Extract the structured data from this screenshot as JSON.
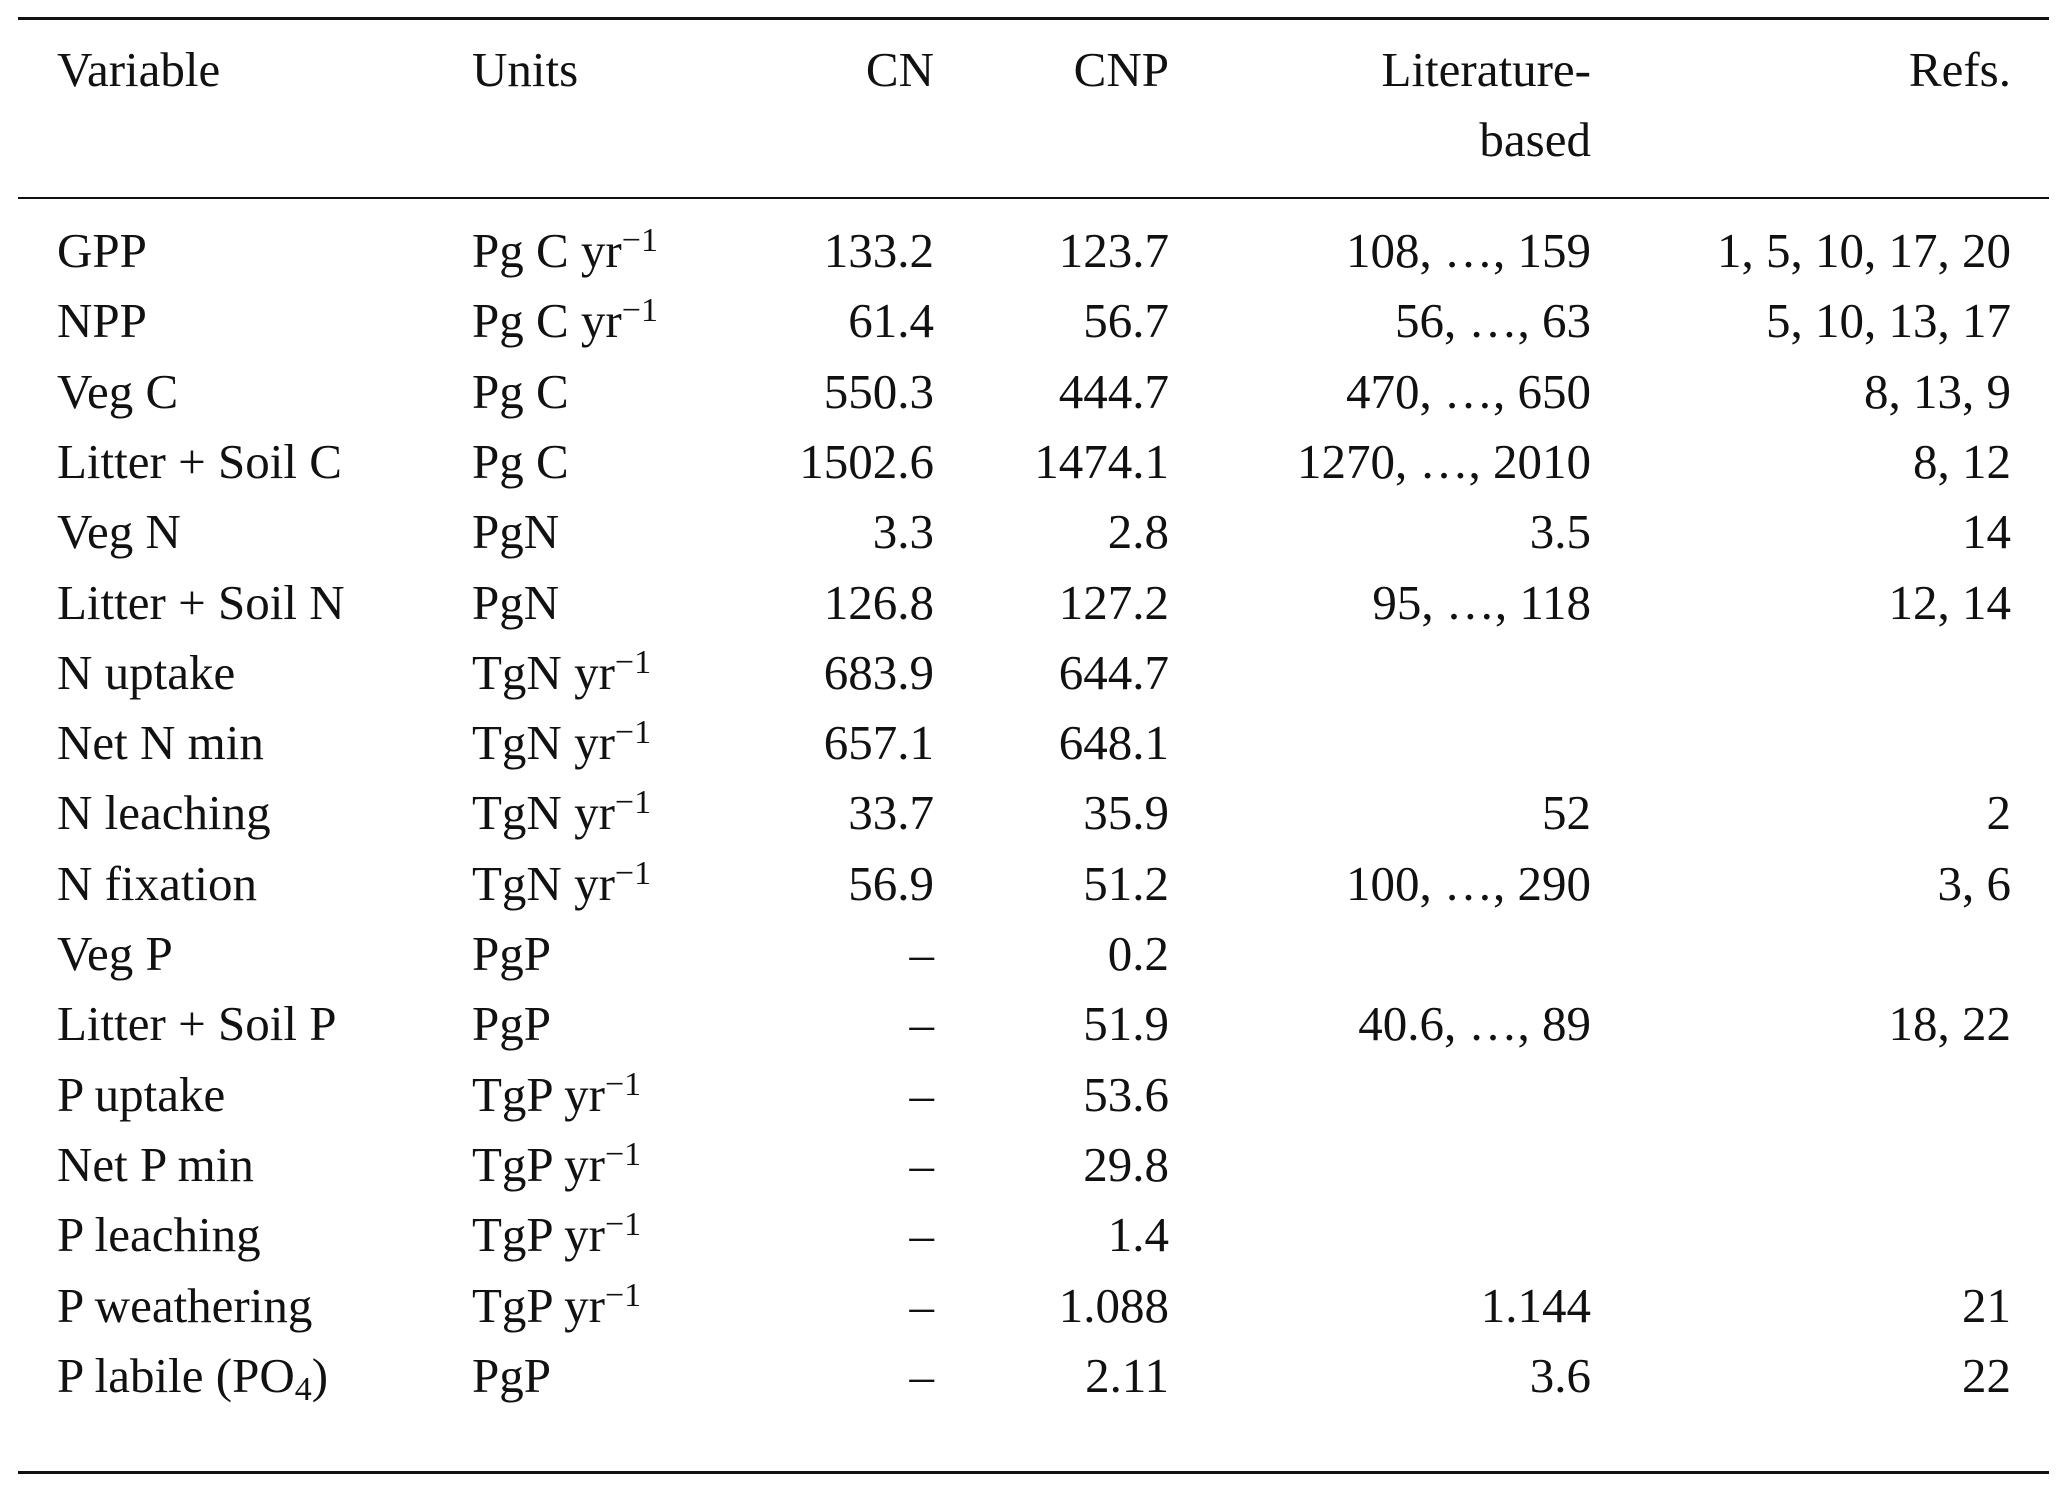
{
  "table": {
    "header": {
      "variable": "Variable",
      "units": "Units",
      "cn": "CN",
      "cnp": "CNP",
      "lit": [
        "Literature-",
        "based"
      ],
      "refs": "Refs."
    },
    "rows": [
      {
        "name": "GPP",
        "units": "Pg C yr",
        "units_sup": "−1",
        "cn": "133.2",
        "cnp": "123.7",
        "lit": "108, …, 159",
        "refs": "1, 5, 10, 17, 20"
      },
      {
        "name": "NPP",
        "units": "Pg C yr",
        "units_sup": "−1",
        "cn": "61.4",
        "cnp": "56.7",
        "lit": "56, …, 63",
        "refs": "5, 10, 13, 17"
      },
      {
        "name": "Veg C",
        "units": "Pg C",
        "cn": "550.3",
        "cnp": "444.7",
        "lit": "470, …, 650",
        "refs": "8, 13, 9"
      },
      {
        "name": "Litter + Soil C",
        "units": "Pg C",
        "cn": "1502.6",
        "cnp": "1474.1",
        "lit": "1270, …, 2010",
        "refs": "8, 12"
      },
      {
        "name": "Veg N",
        "units": "PgN",
        "cn": "3.3",
        "cnp": "2.8",
        "lit": "3.5",
        "refs": "14"
      },
      {
        "name": "Litter + Soil N",
        "units": "PgN",
        "cn": "126.8",
        "cnp": "127.2",
        "lit": "95, …, 118",
        "refs": "12, 14"
      },
      {
        "name": "N uptake",
        "units": "TgN yr",
        "units_sup": "−1",
        "cn": "683.9",
        "cnp": "644.7"
      },
      {
        "name": "Net N min",
        "units": "TgN yr",
        "units_sup": "−1",
        "cn": "657.1",
        "cnp": "648.1"
      },
      {
        "name": "N leaching",
        "units": "TgN yr",
        "units_sup": "−1",
        "cn": "33.7",
        "cnp": "35.9",
        "lit": "52",
        "refs": "2"
      },
      {
        "name": "N fixation",
        "units": "TgN yr",
        "units_sup": "−1",
        "cn": "56.9",
        "cnp": "51.2",
        "lit": "100, …, 290",
        "refs": "3, 6"
      },
      {
        "name": "Veg P",
        "units": "PgP",
        "cn": "–",
        "cnp": "0.2"
      },
      {
        "name": "Litter + Soil P",
        "units": "PgP",
        "cn": "–",
        "cnp": "51.9",
        "lit": "40.6, …, 89",
        "refs": "18, 22"
      },
      {
        "name": "P uptake",
        "units": "TgP yr",
        "units_sup": "−1",
        "cn": "–",
        "cnp": "53.6"
      },
      {
        "name": "Net P min",
        "units": "TgP yr",
        "units_sup": "−1",
        "cn": "–",
        "cnp": "29.8"
      },
      {
        "name": "P leaching",
        "units": "TgP yr",
        "units_sup": "−1",
        "cn": "–",
        "cnp": "1.4"
      },
      {
        "name": "P weathering",
        "units": "TgP yr",
        "units_sup": "−1",
        "cn": "–",
        "cnp": "1.088",
        "lit": "1.144",
        "refs": "21"
      },
      {
        "name": "P labile (PO",
        "name_sub": "4",
        "name_after": ")",
        "units": "PgP",
        "cn": "–",
        "cnp": "2.11",
        "lit": "3.6",
        "refs": "22"
      }
    ]
  }
}
